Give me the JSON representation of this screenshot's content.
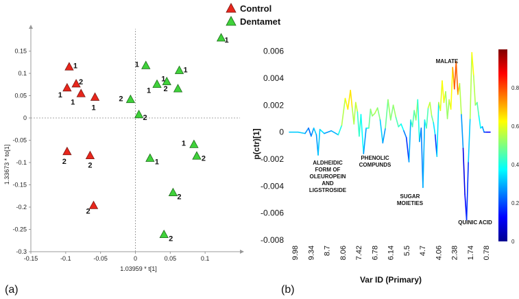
{
  "chart_data": [
    {
      "type": "scatter",
      "title": "",
      "xlabel": "1.03959 * t[1]",
      "ylabel": "1.33673 * to[1]",
      "xlim": [
        -0.15,
        0.15
      ],
      "ylim": [
        -0.3,
        0.2
      ],
      "xticks": [
        "-0.15",
        "-0.1",
        "-0.05",
        "0",
        "0.05",
        "0.1"
      ],
      "yticks": [
        "0.15",
        "0.1",
        "0.05",
        "0",
        "-0.05",
        "-0.1",
        "-0.15",
        "-0.2",
        "-0.25",
        "-0.3"
      ],
      "legend": [
        "Control",
        "Dentamet"
      ],
      "colors": {
        "Control": "#e8261c",
        "Dentamet": "#3fd23a"
      },
      "panel_label": "(a)",
      "series": [
        {
          "name": "Control",
          "points": [
            {
              "x": -0.095,
              "y": 0.115,
              "label": "1"
            },
            {
              "x": -0.085,
              "y": 0.077,
              "label": "2"
            },
            {
              "x": -0.098,
              "y": 0.068,
              "label": "1"
            },
            {
              "x": -0.078,
              "y": 0.055,
              "label": "1"
            },
            {
              "x": -0.058,
              "y": 0.047,
              "label": "1"
            },
            {
              "x": -0.098,
              "y": -0.075,
              "label": "2"
            },
            {
              "x": -0.065,
              "y": -0.084,
              "label": "2"
            },
            {
              "x": -0.06,
              "y": -0.196,
              "label": "2"
            }
          ]
        },
        {
          "name": "Dentamet",
          "points": [
            {
              "x": 0.123,
              "y": 0.18,
              "label": "1"
            },
            {
              "x": 0.015,
              "y": 0.118,
              "label": "1"
            },
            {
              "x": 0.063,
              "y": 0.107,
              "label": "1"
            },
            {
              "x": 0.045,
              "y": 0.082,
              "label": "1"
            },
            {
              "x": 0.031,
              "y": 0.076,
              "label": "1"
            },
            {
              "x": 0.061,
              "y": 0.066,
              "label": "2"
            },
            {
              "x": -0.007,
              "y": 0.042,
              "label": "2"
            },
            {
              "x": 0.005,
              "y": 0.008,
              "label": "2"
            },
            {
              "x": 0.084,
              "y": -0.059,
              "label": "1"
            },
            {
              "x": 0.088,
              "y": -0.085,
              "label": "2"
            },
            {
              "x": 0.021,
              "y": -0.09,
              "label": "1"
            },
            {
              "x": 0.054,
              "y": -0.167,
              "label": "2"
            },
            {
              "x": 0.041,
              "y": -0.261,
              "label": "2"
            }
          ]
        }
      ]
    },
    {
      "type": "line",
      "title": "",
      "xlabel": "Var ID (Primary)",
      "ylabel": "p(ctr)[1]",
      "ylim": [
        -0.008,
        0.007
      ],
      "xticks": [
        "9.98",
        "9.34",
        "8.7",
        "8.06",
        "7.42",
        "6.78",
        "6.14",
        "5.5",
        "4.7",
        "4.06",
        "2.38",
        "1.74",
        "0.78"
      ],
      "yticks": [
        "0.006",
        "0.004",
        "0.002",
        "0",
        "-0.002",
        "-0.004",
        "-0.006",
        "-0.008"
      ],
      "colorbar": {
        "min": 0,
        "max": 1,
        "ticks": [
          "0.8",
          "0.6",
          "0.4",
          "0.2",
          "0"
        ]
      },
      "panel_label": "(b)",
      "annotations": [
        {
          "lines": [
            "ALDHEIDIC",
            "FORM OF",
            "OLEUROPEIN",
            "AND",
            "LIGSTROSIDE"
          ],
          "idx": 37
        },
        {
          "lines": [
            "PHENOLIC",
            "COMPUNDS"
          ],
          "idx": 80
        },
        {
          "lines": [
            "SUGAR",
            "MOIETIES"
          ],
          "idx": 152
        },
        {
          "lines": [
            "MALATE"
          ],
          "idx": 194
        },
        {
          "lines": [
            "QUINIC ACID"
          ],
          "idx": 225
        }
      ],
      "series": [
        {
          "name": "p(ctr)[1]",
          "anchors": [
            [
              0,
              0.0,
              0.3
            ],
            [
              10,
              0.0,
              0.35
            ],
            [
              18,
              -0.0001,
              0.3
            ],
            [
              22,
              0.0003,
              0.25
            ],
            [
              25,
              -0.0003,
              0.2
            ],
            [
              28,
              0.0003,
              0.35
            ],
            [
              31,
              -0.0002,
              0.3
            ],
            [
              33,
              -0.0017,
              0.25
            ],
            [
              35,
              0.0002,
              0.4
            ],
            [
              40,
              -0.0001,
              0.3
            ],
            [
              48,
              0.0001,
              0.25
            ],
            [
              56,
              -0.0002,
              0.35
            ],
            [
              60,
              0.0005,
              0.45
            ],
            [
              64,
              0.0025,
              0.65
            ],
            [
              67,
              0.0017,
              0.6
            ],
            [
              70,
              0.0031,
              0.7
            ],
            [
              72,
              0.0018,
              0.6
            ],
            [
              74,
              0.0006,
              0.5
            ],
            [
              76,
              0.0022,
              0.6
            ],
            [
              78,
              0.0015,
              0.55
            ],
            [
              80,
              -0.0003,
              0.3
            ],
            [
              82,
              0.0013,
              0.55
            ],
            [
              85,
              -0.0016,
              0.2
            ],
            [
              88,
              0.0003,
              0.35
            ],
            [
              91,
              0.0003,
              0.4
            ],
            [
              93,
              0.0017,
              0.55
            ],
            [
              95,
              0.0012,
              0.5
            ],
            [
              98,
              0.0014,
              0.55
            ],
            [
              101,
              0.0018,
              0.55
            ],
            [
              104,
              0.0009,
              0.45
            ],
            [
              107,
              -0.0008,
              0.2
            ],
            [
              110,
              0.0003,
              0.35
            ],
            [
              113,
              0.0024,
              0.6
            ],
            [
              116,
              0.0009,
              0.45
            ],
            [
              119,
              0.002,
              0.55
            ],
            [
              122,
              0.0011,
              0.5
            ],
            [
              125,
              0.0004,
              0.4
            ],
            [
              128,
              0.0006,
              0.45
            ],
            [
              131,
              0.0001,
              0.3
            ],
            [
              134,
              -0.0004,
              0.2
            ],
            [
              137,
              -0.0022,
              0.15
            ],
            [
              139,
              0.0009,
              0.45
            ],
            [
              141,
              0.0004,
              0.4
            ],
            [
              143,
              0.0016,
              0.5
            ],
            [
              145,
              0.0009,
              0.45
            ],
            [
              147,
              0.0024,
              0.6
            ],
            [
              149,
              -0.0007,
              0.2
            ],
            [
              151,
              0.0003,
              0.35
            ],
            [
              153,
              -0.0041,
              0.15
            ],
            [
              155,
              0.0009,
              0.45
            ],
            [
              157,
              0.0003,
              0.35
            ],
            [
              159,
              0.0018,
              0.55
            ],
            [
              161,
              0.0022,
              0.6
            ],
            [
              163,
              0.0012,
              0.5
            ],
            [
              165,
              0.0007,
              0.45
            ],
            [
              167,
              -0.0002,
              0.25
            ],
            [
              169,
              -0.0018,
              0.1
            ],
            [
              171,
              0.0022,
              0.6
            ],
            [
              173,
              0.0016,
              0.55
            ],
            [
              175,
              0.0038,
              0.65
            ],
            [
              177,
              0.0022,
              0.6
            ],
            [
              179,
              0.003,
              0.6
            ],
            [
              181,
              0.001,
              0.45
            ],
            [
              183,
              0.0024,
              0.6
            ],
            [
              185,
              0.0017,
              0.55
            ],
            [
              187,
              0.0048,
              0.7
            ],
            [
              189,
              0.0032,
              0.75
            ],
            [
              191,
              0.0052,
              0.85
            ],
            [
              193,
              0.0028,
              0.7
            ],
            [
              195,
              0.0036,
              0.65
            ],
            [
              197,
              0.0013,
              0.45
            ],
            [
              199,
              -0.0012,
              0.1
            ],
            [
              201,
              -0.0046,
              0.1
            ],
            [
              203,
              -0.0065,
              0.15
            ],
            [
              205,
              -0.0022,
              0.2
            ],
            [
              207,
              0.001,
              0.45
            ],
            [
              209,
              0.0059,
              0.65
            ],
            [
              211,
              0.0042,
              0.6
            ],
            [
              213,
              0.002,
              0.5
            ],
            [
              215,
              0.0022,
              0.5
            ],
            [
              217,
              0.0012,
              0.4
            ],
            [
              219,
              0.0003,
              0.35
            ],
            [
              221,
              0.0004,
              0.35
            ],
            [
              223,
              0.0,
              0.2
            ],
            [
              226,
              0.0,
              0.15
            ],
            [
              230,
              0.0,
              0.1
            ]
          ]
        }
      ]
    }
  ]
}
